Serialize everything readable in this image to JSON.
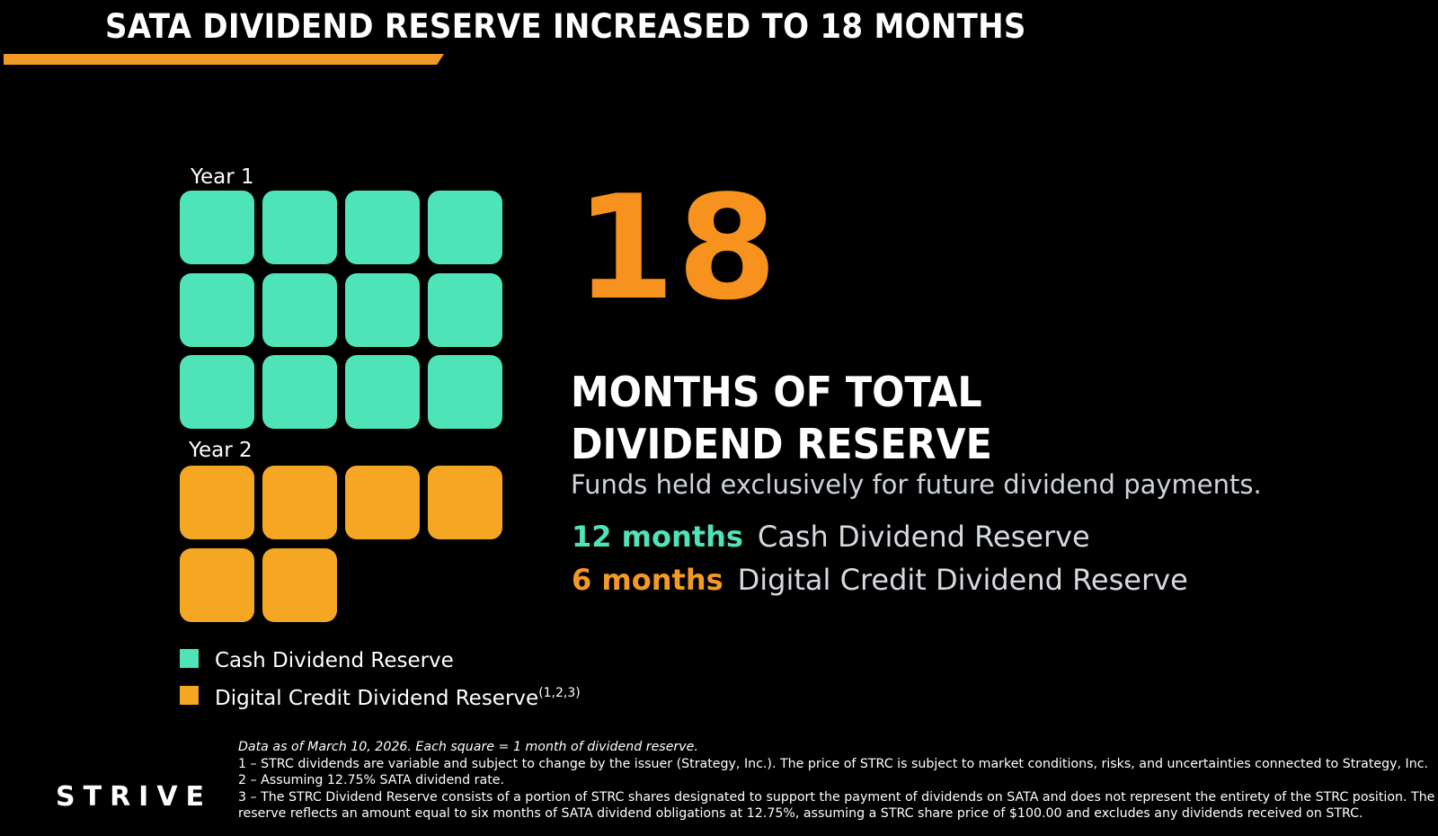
{
  "title": "SATA DIVIDEND RESERVE INCREASED TO 18 MONTHS",
  "reserve": {
    "year1_label": "Year 1",
    "year2_label": "Year 2",
    "cash_months": 12,
    "digital_months": 6,
    "columns": 4,
    "colors": {
      "cash": "#4fe3b8",
      "digital": "#f5a623",
      "accent": "#f39a26"
    }
  },
  "big_number": "18",
  "headline_line1": "MONTHS OF TOTAL",
  "headline_line2": "DIVIDEND RESERVE",
  "subtitle": "Funds held exclusively for future dividend payments.",
  "breakdown": {
    "cash_amount": "12 months",
    "cash_label": "Cash Dividend Reserve",
    "digital_amount": "6 months",
    "digital_label": "Digital Credit Dividend Reserve"
  },
  "legend": {
    "cash_label": "Cash Dividend Reserve",
    "digital_label": "Digital Credit Dividend Reserve",
    "digital_sup": "(1,2,3)"
  },
  "logo": "STRIVE",
  "footnotes": {
    "lead": "Data as of March 10, 2026. Each square = 1 month of dividend reserve.",
    "note1": "1 – STRC dividends are variable and subject to change by the issuer (Strategy, Inc.). The price of STRC is subject to market conditions, risks, and uncertainties connected to Strategy, Inc.",
    "note2": "2 – Assuming 12.75% SATA dividend rate.",
    "note3a": "3 – The STRC Dividend Reserve consists of a portion of STRC shares designated to support the payment of dividends on SATA and does not represent the entirety of the STRC position. The",
    "note3b": "reserve reflects an amount equal to six months of SATA dividend obligations at 12.75%, assuming a STRC share price of $100.00 and excludes any dividends received on STRC."
  }
}
